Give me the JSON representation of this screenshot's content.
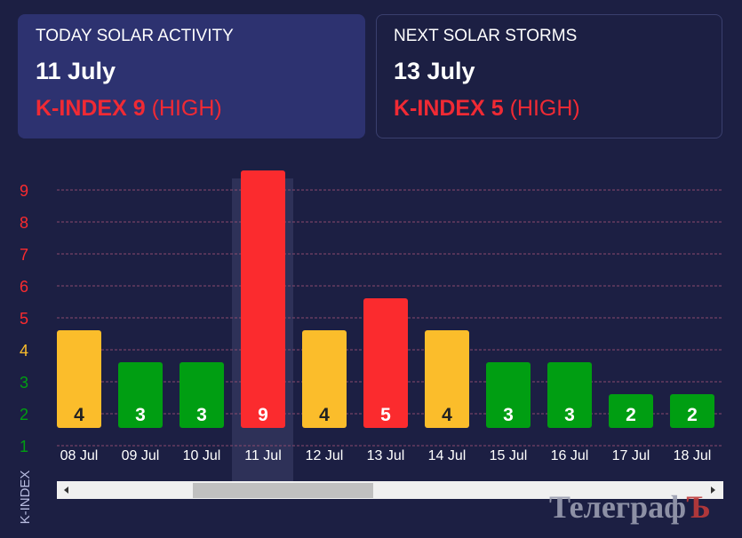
{
  "today": {
    "title": "TODAY SOLAR ACTIVITY",
    "date": "11 July",
    "kindex_label": "K-INDEX 9",
    "level": "(HIGH)"
  },
  "next": {
    "title": "NEXT SOLAR STORMS",
    "date": "13 July",
    "kindex_label": "K-INDEX 5",
    "level": "(HIGH)"
  },
  "watermark": {
    "main": "Телеграф",
    "accent": "Ъ"
  },
  "chart_data": {
    "type": "bar",
    "ylabel": "K-INDEX",
    "ylim": [
      1,
      9
    ],
    "yticks": [
      1,
      2,
      3,
      4,
      5,
      6,
      7,
      8,
      9
    ],
    "grid": true,
    "categories": [
      "08 Jul",
      "09 Jul",
      "10 Jul",
      "11 Jul",
      "12 Jul",
      "13 Jul",
      "14 Jul",
      "15 Jul",
      "16 Jul",
      "17 Jul",
      "18 Jul"
    ],
    "values": [
      4,
      3,
      3,
      9,
      4,
      5,
      4,
      3,
      3,
      2,
      2
    ],
    "highlighted": "11 Jul",
    "colors": {
      "low": "#009e12",
      "medium": "#fbbd2b",
      "high": "#fb2b2e"
    }
  }
}
